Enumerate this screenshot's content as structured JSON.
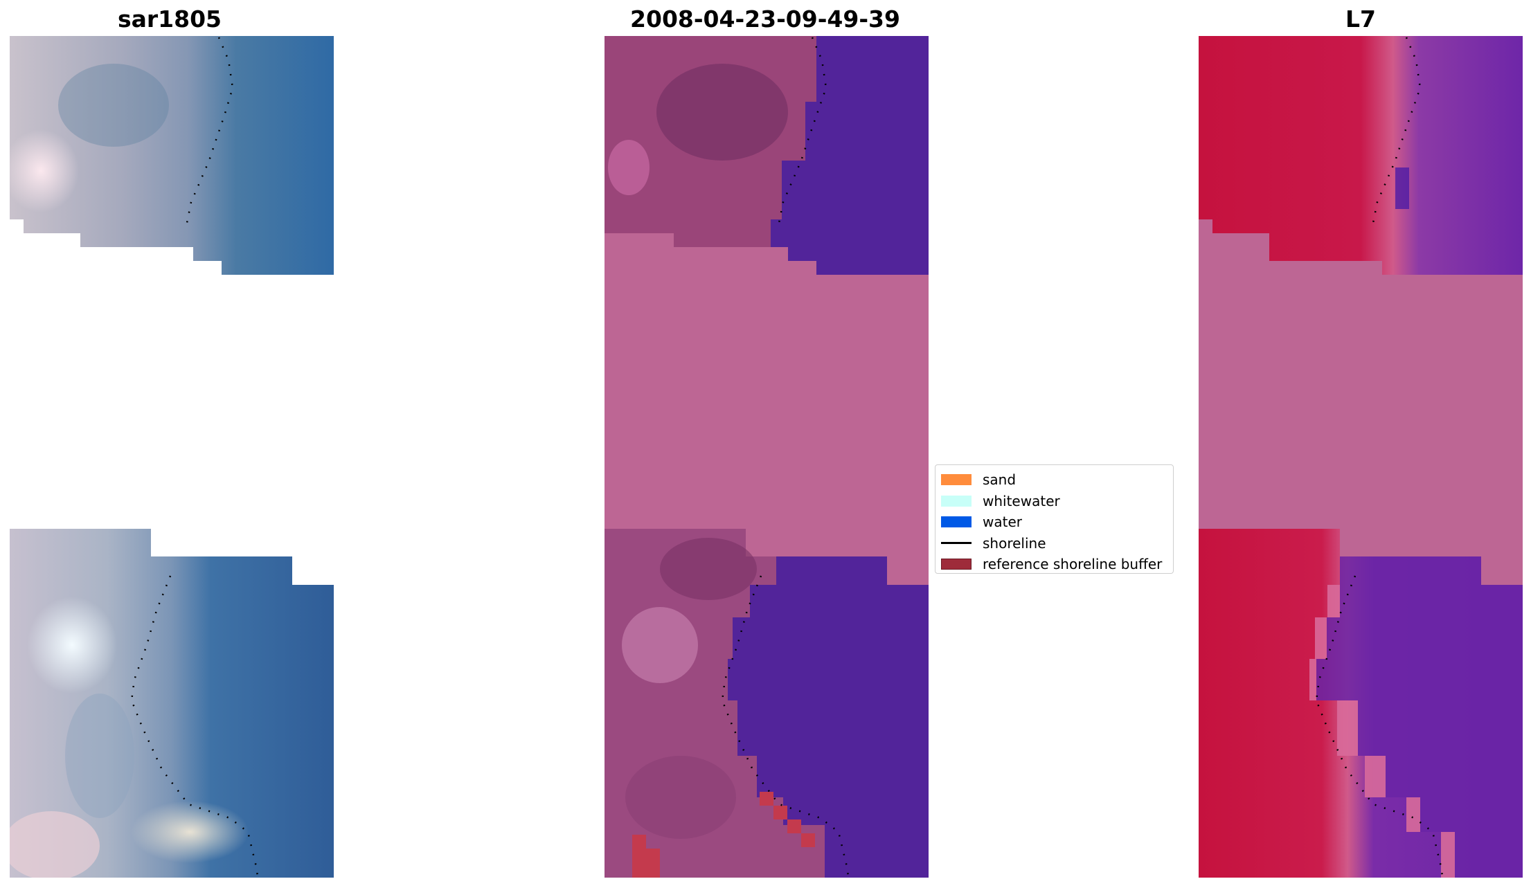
{
  "panels": [
    {
      "title": "sar1805"
    },
    {
      "title": "2008-04-23-09-49-39"
    },
    {
      "title": "L7"
    }
  ],
  "legend": {
    "items": [
      {
        "label": "sand",
        "color": "#ff8c3c"
      },
      {
        "label": "whitewater",
        "color": "#c8fff8"
      },
      {
        "label": "water",
        "color": "#0059e6"
      },
      {
        "label": "shoreline",
        "color": "#000000"
      },
      {
        "label": "reference shoreline buffer",
        "color": "#9e2b3a"
      }
    ]
  },
  "colors": {
    "nodata_fill": "#bd6694",
    "water_class": "#52249a",
    "rgb_water": "#3269a3",
    "ndwi_land": "#c5123e",
    "ndwi_water": "#6a25a6"
  }
}
